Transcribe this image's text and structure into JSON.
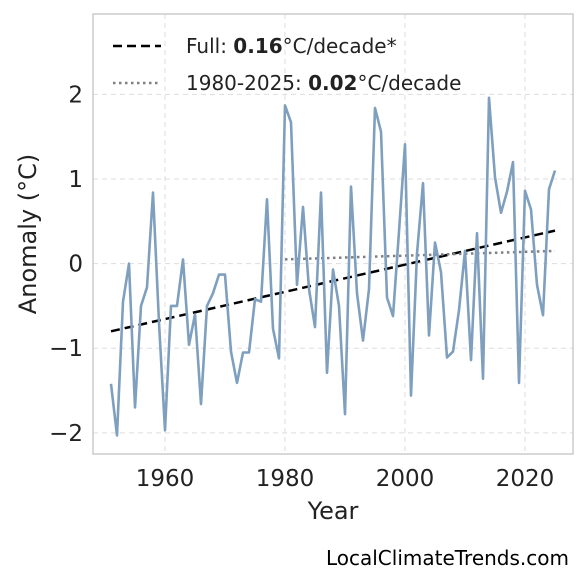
{
  "chart_data": {
    "type": "line",
    "xlabel": "Year",
    "ylabel": "Anomaly (°C)",
    "xlim": [
      1948,
      2028
    ],
    "ylim": [
      -2.25,
      2.95
    ],
    "x_ticks": [
      1960,
      1980,
      2000,
      2020
    ],
    "y_ticks": [
      -2,
      -1,
      0,
      1,
      2
    ],
    "x_tick_labels": [
      "1960",
      "1980",
      "2000",
      "2020"
    ],
    "y_tick_labels": [
      "−2",
      "−1",
      "0",
      "1",
      "2"
    ],
    "grid": true,
    "legend_position": "top-left",
    "series": [
      {
        "color": "#7f9fbf",
        "x": [
          1951,
          1952,
          1953,
          1954,
          1955,
          1956,
          1957,
          1958,
          1959,
          1960,
          1961,
          1962,
          1963,
          1964,
          1965,
          1966,
          1967,
          1968,
          1969,
          1970,
          1971,
          1972,
          1973,
          1974,
          1975,
          1976,
          1977,
          1978,
          1979,
          1980,
          1981,
          1982,
          1983,
          1984,
          1985,
          1986,
          1987,
          1988,
          1989,
          1990,
          1991,
          1992,
          1993,
          1994,
          1995,
          1996,
          1997,
          1998,
          1999,
          2000,
          2001,
          2002,
          2003,
          2004,
          2005,
          2006,
          2007,
          2008,
          2009,
          2010,
          2011,
          2012,
          2013,
          2014,
          2015,
          2016,
          2017,
          2018,
          2019,
          2020,
          2021,
          2022,
          2023,
          2024,
          2025
        ],
        "y": [
          -1.42,
          -2.03,
          -0.45,
          0.0,
          -1.7,
          -0.5,
          -0.28,
          0.84,
          -0.7,
          -1.97,
          -0.5,
          -0.5,
          0.05,
          -0.96,
          -0.6,
          -1.66,
          -0.5,
          -0.35,
          -0.13,
          -0.13,
          -1.04,
          -1.41,
          -1.05,
          -1.05,
          -0.42,
          -0.45,
          0.76,
          -0.77,
          -1.12,
          1.87,
          1.67,
          -0.25,
          0.67,
          -0.3,
          -0.75,
          0.84,
          -1.29,
          -0.07,
          -0.5,
          -1.78,
          0.91,
          -0.35,
          -0.91,
          -0.3,
          1.84,
          1.56,
          -0.4,
          -0.62,
          0.38,
          1.41,
          -1.56,
          0.12,
          0.95,
          -0.85,
          0.25,
          -0.1,
          -1.11,
          -1.04,
          -0.55,
          0.15,
          -1.14,
          0.36,
          -1.36,
          1.96,
          1.02,
          0.6,
          0.85,
          1.2,
          -1.41,
          0.86,
          0.64,
          -0.25,
          -0.61,
          0.88,
          1.1
        ]
      }
    ],
    "trend_lines": [
      {
        "label_prefix": "Full: ",
        "label_value": "0.16",
        "label_suffix": "°C/decade*",
        "style": "dashed",
        "color": "#000000",
        "x": [
          1951,
          2025
        ],
        "y": [
          -0.8,
          0.39
        ]
      },
      {
        "label_prefix": "1980-2025: ",
        "label_value": "0.02",
        "label_suffix": "°C/decade",
        "style": "dotted",
        "color": "#808080",
        "x": [
          1980,
          2025
        ],
        "y": [
          0.05,
          0.15
        ]
      }
    ]
  },
  "watermark": "LocalClimateTrends.com"
}
